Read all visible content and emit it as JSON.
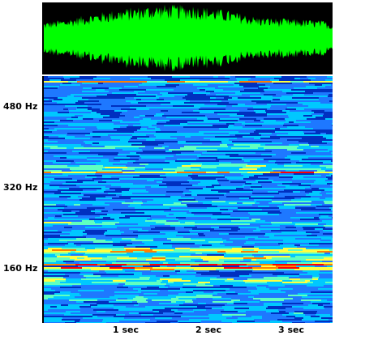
{
  "chart_data": {
    "type": "heatmap",
    "title": "",
    "panels": [
      {
        "name": "waveform",
        "type": "area",
        "colors": {
          "background": "#000000",
          "fill": "#00ff00"
        },
        "envelope": {
          "t_sec": [
            0.0,
            0.3,
            0.6,
            1.0,
            1.4,
            1.8,
            2.2,
            2.6,
            3.0,
            3.4,
            3.5
          ],
          "amplitude": [
            0.45,
            0.55,
            0.7,
            0.85,
            0.95,
            0.95,
            0.8,
            0.6,
            0.55,
            0.5,
            0.4
          ]
        }
      },
      {
        "name": "spectrogram",
        "type": "heatmap",
        "x_ticks": [
          {
            "value": 1,
            "label": "1 sec"
          },
          {
            "value": 2,
            "label": "2 sec"
          },
          {
            "value": 3,
            "label": "3 sec"
          }
        ],
        "y_ticks": [
          {
            "value": 480,
            "label": "480 Hz"
          },
          {
            "value": 320,
            "label": "320 Hz"
          },
          {
            "value": 160,
            "label": "160 Hz"
          }
        ],
        "xlim": [
          0,
          3.5
        ],
        "ylim": [
          50,
          540
        ],
        "colormap": [
          "#000066",
          "#0030c0",
          "#1e78ff",
          "#00c8ff",
          "#60ffc0",
          "#ffff40",
          "#ff8000",
          "#ff0000"
        ],
        "bands": [
          {
            "hz": 530,
            "intensity": 0.75,
            "width_hz": 3
          },
          {
            "hz": 500,
            "intensity": 0.25,
            "width_hz": 18
          },
          {
            "hz": 478,
            "intensity": 0.05,
            "width_hz": 22
          },
          {
            "hz": 440,
            "intensity": 0.2,
            "width_hz": 18
          },
          {
            "hz": 400,
            "intensity": 0.45,
            "width_hz": 12
          },
          {
            "hz": 360,
            "intensity": 0.55,
            "width_hz": 10
          },
          {
            "hz": 350,
            "intensity": 0.85,
            "width_hz": 2
          },
          {
            "hz": 320,
            "intensity": 0.3,
            "width_hz": 14
          },
          {
            "hz": 290,
            "intensity": 0.4,
            "width_hz": 14
          },
          {
            "hz": 250,
            "intensity": 0.5,
            "width_hz": 12
          },
          {
            "hz": 215,
            "intensity": 0.45,
            "width_hz": 10
          },
          {
            "hz": 195,
            "intensity": 0.75,
            "width_hz": 8
          },
          {
            "hz": 180,
            "intensity": 0.7,
            "width_hz": 8
          },
          {
            "hz": 168,
            "intensity": 1.0,
            "width_hz": 3
          },
          {
            "hz": 160,
            "intensity": 0.9,
            "width_hz": 4
          },
          {
            "hz": 135,
            "intensity": 0.55,
            "width_hz": 14
          },
          {
            "hz": 100,
            "intensity": 0.45,
            "width_hz": 16
          },
          {
            "hz": 70,
            "intensity": 0.35,
            "width_hz": 14
          }
        ],
        "hotspots": [
          {
            "t_sec": 2.9,
            "hz": 162,
            "intensity": 1.0,
            "width_sec": 0.35,
            "width_hz": 6
          }
        ]
      }
    ]
  }
}
